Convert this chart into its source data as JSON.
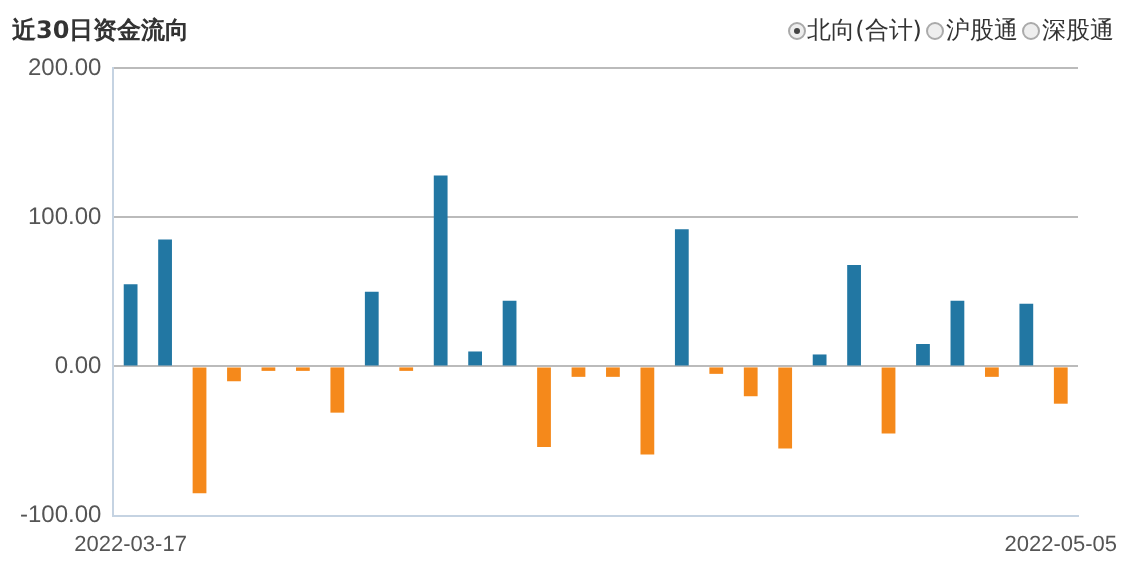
{
  "chart_data": {
    "type": "bar",
    "title": "近30日资金流向",
    "annotations": [
      "北向(合计)",
      "沪股通",
      "深股通"
    ],
    "categories": [
      "2022-03-17",
      null,
      null,
      null,
      null,
      null,
      null,
      null,
      null,
      null,
      null,
      null,
      null,
      null,
      null,
      null,
      null,
      null,
      null,
      null,
      null,
      null,
      null,
      null,
      null,
      null,
      null,
      "2022-05-05"
    ],
    "values": [
      55,
      85,
      -85,
      -10,
      -3,
      -3,
      -31,
      50,
      -3,
      128,
      10,
      44,
      -54,
      -7,
      -7,
      -59,
      92,
      -5,
      -20,
      -55,
      8,
      68,
      -45,
      15,
      44,
      -7,
      42,
      -25
    ],
    "colors": [
      "#2277a3",
      "#2277a3",
      "#f5891b",
      "#f5891b",
      "#f5891b",
      "#f5891b",
      "#f5891b",
      "#2277a3",
      "#f5891b",
      "#2277a3",
      "#2277a3",
      "#2277a3",
      "#f5891b",
      "#f5891b",
      "#f5891b",
      "#f5891b",
      "#2277a3",
      "#f5891b",
      "#f5891b",
      "#f5891b",
      "#2277a3",
      "#2277a3",
      "#f5891b",
      "#2277a3",
      "#2277a3",
      "#f5891b",
      "#2277a3",
      "#f5891b"
    ],
    "ylim": [
      -100,
      200
    ],
    "yticks": [
      {
        "value": -100,
        "label": "-100.00"
      },
      {
        "value": 0,
        "label": "0.00"
      },
      {
        "value": 100,
        "label": "100.00"
      },
      {
        "value": 200,
        "label": "200.00"
      }
    ],
    "grid": "y"
  }
}
